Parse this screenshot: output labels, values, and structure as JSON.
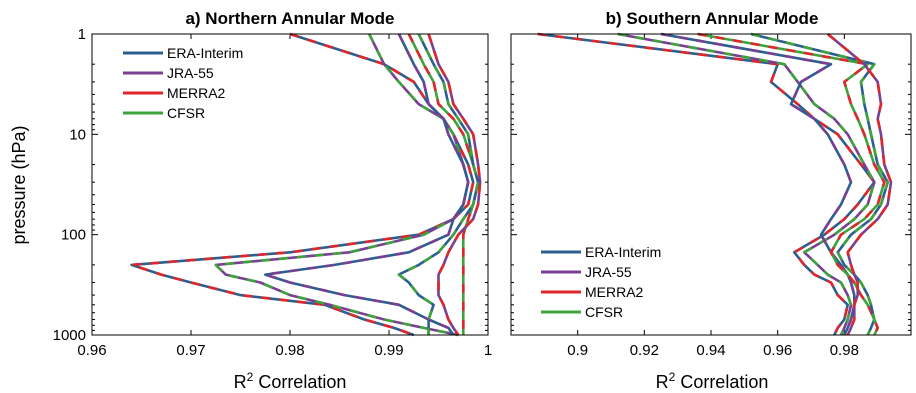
{
  "chart_data": [
    {
      "type": "line",
      "title": "a) Northern Annular Mode",
      "xlabel": "R² Correlation",
      "ylabel": "pressure (hPa)",
      "xlim": [
        0.96,
        1.0
      ],
      "ylim": [
        1,
        1000
      ],
      "yscale": "log",
      "y_reversed": true,
      "xticks": [
        "0.96",
        "0.97",
        "0.98",
        "0.99",
        "1"
      ],
      "yticks": [
        "1",
        "10",
        "100",
        "1000"
      ],
      "legend_position": "top-left",
      "series_pairs": [
        [
          "ERA-Interim",
          "MERRA2"
        ],
        [
          "JRA-55",
          "CFSR"
        ],
        [
          "ERA-Interim",
          "JRA-55"
        ],
        [
          "CFSR",
          "MERRA2"
        ],
        [
          "ERA-Interim",
          "CFSR"
        ],
        [
          "JRA-55",
          "MERRA2"
        ]
      ],
      "pressure_levels": [
        1,
        2,
        3,
        5,
        7,
        10,
        20,
        30,
        50,
        70,
        100,
        150,
        200,
        250,
        300,
        400,
        500,
        700,
        850,
        1000
      ],
      "series": [
        {
          "pair": 0,
          "values": [
            0.98,
            0.9895,
            0.9925,
            0.994,
            0.9955,
            0.9965,
            0.998,
            0.9985,
            0.998,
            0.9965,
            0.993,
            0.98,
            0.964,
            0.967,
            0.97,
            0.975,
            0.9835,
            0.9875,
            0.9905,
            0.9925
          ]
        },
        {
          "pair": 1,
          "values": [
            0.988,
            0.9895,
            0.991,
            0.993,
            0.9955,
            0.9965,
            0.9975,
            0.998,
            0.9975,
            0.9965,
            0.9935,
            0.986,
            0.9725,
            0.9735,
            0.977,
            0.98,
            0.984,
            0.9895,
            0.9935,
            0.997
          ]
        },
        {
          "pair": 2,
          "values": [
            0.991,
            0.9925,
            0.9935,
            0.994,
            0.9955,
            0.996,
            0.9975,
            0.998,
            0.9975,
            0.9965,
            0.996,
            0.992,
            0.9845,
            0.9775,
            0.98,
            0.9855,
            0.991,
            0.994,
            0.996,
            0.9965
          ]
        },
        {
          "pair": 3,
          "values": [
            0.992,
            0.9935,
            0.9945,
            0.995,
            0.9965,
            0.9975,
            0.9985,
            0.999,
            0.9985,
            0.998,
            0.9975,
            0.9975,
            0.9975,
            0.9975,
            0.9975,
            0.9975,
            0.9975,
            0.9975,
            0.9975,
            0.9975
          ]
        },
        {
          "pair": 4,
          "values": [
            0.993,
            0.9945,
            0.9955,
            0.996,
            0.997,
            0.998,
            0.9985,
            0.999,
            0.9985,
            0.9975,
            0.9965,
            0.995,
            0.993,
            0.991,
            0.992,
            0.993,
            0.9945,
            0.994,
            0.994,
            0.994
          ]
        },
        {
          "pair": 5,
          "values": [
            0.994,
            0.995,
            0.996,
            0.9965,
            0.9975,
            0.9985,
            0.999,
            0.9992,
            0.999,
            0.9985,
            0.997,
            0.996,
            0.9955,
            0.995,
            0.995,
            0.995,
            0.9955,
            0.996,
            0.9965,
            0.997
          ]
        }
      ]
    },
    {
      "type": "line",
      "title": "b) Southern Annular Mode",
      "xlabel": "R² Correlation",
      "ylabel": "",
      "xlim": [
        0.88,
        1.0
      ],
      "ylim": [
        1,
        1000
      ],
      "yscale": "log",
      "y_reversed": true,
      "xticks": [
        "0.9",
        "0.92",
        "0.94",
        "0.96",
        "0.98"
      ],
      "legend_position": "bottom-left",
      "series_pairs": [
        [
          "ERA-Interim",
          "MERRA2"
        ],
        [
          "JRA-55",
          "CFSR"
        ],
        [
          "ERA-Interim",
          "JRA-55"
        ],
        [
          "CFSR",
          "MERRA2"
        ],
        [
          "ERA-Interim",
          "CFSR"
        ],
        [
          "JRA-55",
          "MERRA2"
        ]
      ],
      "pressure_levels": [
        1,
        2,
        3,
        5,
        7,
        10,
        20,
        30,
        50,
        70,
        100,
        150,
        200,
        250,
        300,
        400,
        500,
        700,
        850,
        1000
      ],
      "series": [
        {
          "pair": 0,
          "values": [
            0.888,
            0.96,
            0.958,
            0.966,
            0.971,
            0.978,
            0.985,
            0.989,
            0.984,
            0.98,
            0.974,
            0.965,
            0.968,
            0.971,
            0.976,
            0.978,
            0.981,
            0.98,
            0.978,
            0.977
          ]
        },
        {
          "pair": 1,
          "values": [
            0.912,
            0.962,
            0.966,
            0.971,
            0.977,
            0.981,
            0.986,
            0.989,
            0.987,
            0.983,
            0.977,
            0.968,
            0.972,
            0.975,
            0.979,
            0.981,
            0.982,
            0.981,
            0.98,
            0.979
          ]
        },
        {
          "pair": 2,
          "values": [
            0.925,
            0.976,
            0.967,
            0.964,
            0.971,
            0.975,
            0.98,
            0.982,
            0.979,
            0.976,
            0.973,
            0.976,
            0.979,
            0.981,
            0.982,
            0.983,
            0.983,
            0.982,
            0.981,
            0.98
          ]
        },
        {
          "pair": 3,
          "values": [
            0.936,
            0.987,
            0.98,
            0.982,
            0.984,
            0.986,
            0.989,
            0.992,
            0.99,
            0.986,
            0.979,
            0.976,
            0.978,
            0.981,
            0.983,
            0.985,
            0.987,
            0.989,
            0.99,
            0.989
          ]
        },
        {
          "pair": 4,
          "values": [
            0.952,
            0.989,
            0.985,
            0.986,
            0.987,
            0.988,
            0.99,
            0.993,
            0.991,
            0.988,
            0.982,
            0.978,
            0.98,
            0.983,
            0.985,
            0.987,
            0.988,
            0.989,
            0.988,
            0.987
          ]
        },
        {
          "pair": 5,
          "values": [
            0.975,
            0.986,
            0.99,
            0.991,
            0.99,
            0.991,
            0.992,
            0.994,
            0.993,
            0.99,
            0.985,
            0.981,
            0.982,
            0.983,
            0.984,
            0.984,
            0.983,
            0.983,
            0.982,
            0.981
          ]
        }
      ]
    }
  ],
  "legend": [
    "ERA-Interim",
    "JRA-55",
    "MERRA2",
    "CFSR"
  ],
  "colors": {
    "ERA-Interim": "#2b5f8f",
    "JRA-55": "#7a3f92",
    "MERRA2": "#e0262b",
    "CFSR": "#3ea33b",
    "axis": "#000000",
    "background": "#ffffff"
  }
}
